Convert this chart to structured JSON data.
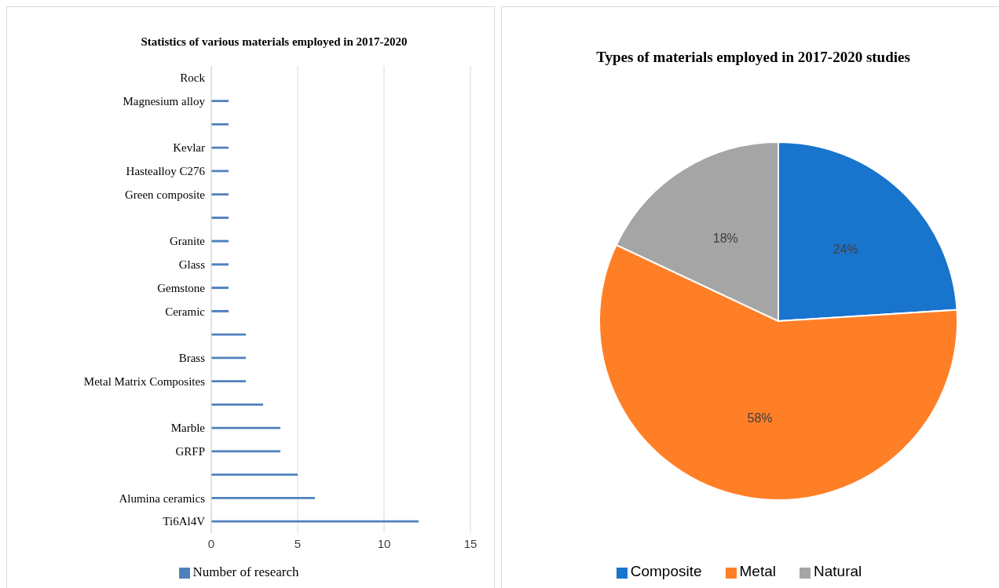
{
  "chart_data": [
    {
      "type": "bar",
      "orientation": "horizontal",
      "title": "Statistics of various materials employed in 2017-2020",
      "categories": [
        "Rock",
        "Magnesium alloy",
        null,
        "Kevlar",
        "Hastealloy  C276",
        "Green composite",
        null,
        "Granite",
        "Glass",
        "Gemstone",
        "Ceramic",
        null,
        "Brass",
        "Metal Matrix Composites",
        null,
        "Marble",
        "GRFP",
        null,
        "Alumina ceramics",
        "Ti6Al4V"
      ],
      "series": [
        {
          "name": "Number of research",
          "color": "#4f81bd",
          "values": [
            null,
            1,
            1,
            1,
            1,
            1,
            1,
            1,
            1,
            1,
            1,
            2,
            2,
            2,
            3,
            4,
            4,
            5,
            6,
            12
          ]
        }
      ],
      "xlim": [
        0,
        15
      ],
      "xticks": [
        0,
        5,
        10,
        15
      ],
      "grid": "x",
      "legend": "bottom"
    },
    {
      "type": "pie",
      "title": "Types of materials employed in 2017-2020 studies",
      "categories": [
        "Composite",
        "Metal",
        "Natural"
      ],
      "values": [
        24,
        58,
        18
      ],
      "colors": [
        "#1874cd",
        "#ff7f27",
        "#a5a5a5"
      ],
      "value_labels": [
        "24%",
        "58%",
        "18%"
      ],
      "legend": "bottom"
    }
  ]
}
